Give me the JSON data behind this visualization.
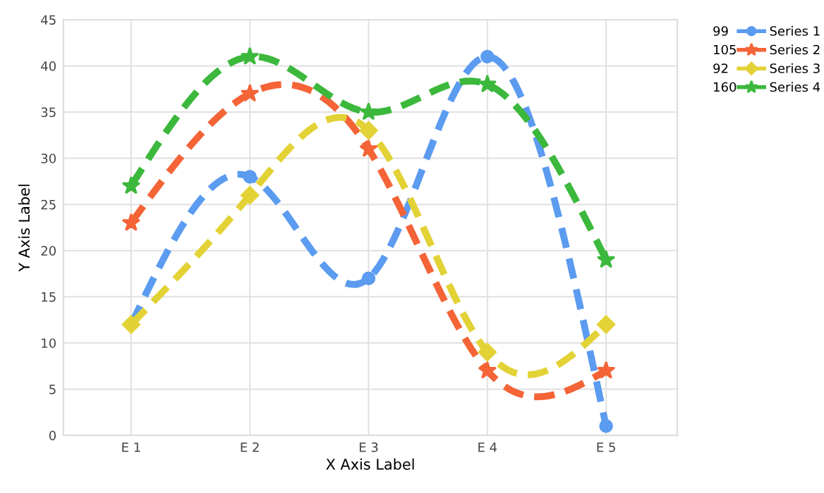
{
  "chart_data": {
    "type": "line",
    "xlabel": "X Axis Label",
    "ylabel": "Y Axis Label",
    "categories": [
      "E 1",
      "E 2",
      "E 3",
      "E 4",
      "E 5"
    ],
    "series": [
      {
        "name": "Series 1",
        "color": "#5b9bf0",
        "marker": "circle",
        "values": [
          12,
          28,
          17,
          41,
          1
        ]
      },
      {
        "name": "Series 2",
        "color": "#f46437",
        "marker": "star",
        "values": [
          23,
          37,
          31,
          7,
          7
        ]
      },
      {
        "name": "Series 3",
        "color": "#e3d236",
        "marker": "diamond",
        "values": [
          12,
          26,
          33,
          9,
          12
        ]
      },
      {
        "name": "Series 4",
        "color": "#3cb83c",
        "marker": "star",
        "values": [
          27,
          41,
          35,
          38,
          19
        ]
      }
    ],
    "totals": [
      "99",
      "105",
      "92",
      "160"
    ],
    "ylim": [
      0,
      45
    ],
    "yticks": [
      0,
      5,
      10,
      15,
      20,
      25,
      30,
      35,
      40,
      45
    ],
    "grid": true,
    "legend": "top right",
    "line_style": "dashed"
  }
}
